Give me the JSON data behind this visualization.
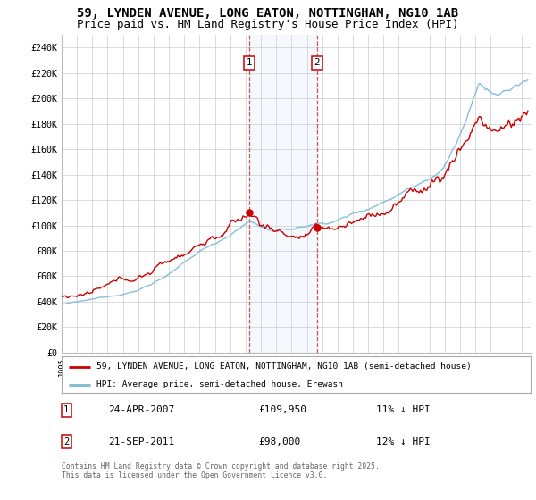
{
  "title": "59, LYNDEN AVENUE, LONG EATON, NOTTINGHAM, NG10 1AB",
  "subtitle": "Price paid vs. HM Land Registry's House Price Index (HPI)",
  "ylabel_ticks": [
    "£0",
    "£20K",
    "£40K",
    "£60K",
    "£80K",
    "£100K",
    "£120K",
    "£140K",
    "£160K",
    "£180K",
    "£200K",
    "£220K",
    "£240K"
  ],
  "ytick_values": [
    0,
    20000,
    40000,
    60000,
    80000,
    100000,
    120000,
    140000,
    160000,
    180000,
    200000,
    220000,
    240000
  ],
  "ylim": [
    0,
    250000
  ],
  "sale1_date": "24-APR-2007",
  "sale1_price": 109950,
  "sale1_label": "1",
  "sale1_hpi_diff": "11% ↓ HPI",
  "sale2_date": "21-SEP-2011",
  "sale2_price": 98000,
  "sale2_label": "2",
  "sale2_hpi_diff": "12% ↓ HPI",
  "property_label": "59, LYNDEN AVENUE, LONG EATON, NOTTINGHAM, NG10 1AB (semi-detached house)",
  "hpi_label": "HPI: Average price, semi-detached house, Erewash",
  "price_color": "#cc0000",
  "hpi_color": "#7ab8d9",
  "shade_color": "#ddeeff",
  "grid_color": "#cccccc",
  "footnote": "Contains HM Land Registry data © Crown copyright and database right 2025.\nThis data is licensed under the Open Government Licence v3.0.",
  "start_year": 1995,
  "end_year": 2025,
  "background_color": "#ffffff",
  "title_fontsize": 10,
  "subtitle_fontsize": 9
}
